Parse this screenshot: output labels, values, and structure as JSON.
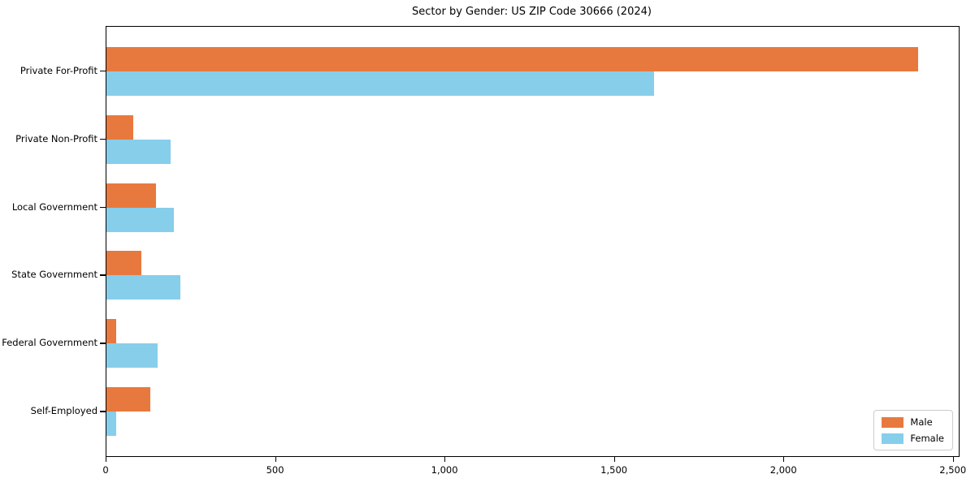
{
  "title": "Sector by Gender: US ZIP Code 30666 (2024)",
  "chart_data": {
    "type": "bar",
    "orientation": "horizontal",
    "title": "Sector by Gender: US ZIP Code 30666 (2024)",
    "categories": [
      "Private For-Profit",
      "Private Non-Profit",
      "Local Government",
      "State Government",
      "Federal Government",
      "Self-Employed"
    ],
    "series": [
      {
        "name": "Male",
        "color": "#e8793e",
        "values": [
          2396,
          78,
          145,
          104,
          28,
          130
        ]
      },
      {
        "name": "Female",
        "color": "#87ceeb",
        "values": [
          1616,
          190,
          198,
          218,
          152,
          28
        ]
      }
    ],
    "xlabel": "",
    "ylabel": "",
    "xlim": [
      0,
      2515
    ],
    "xticks": [
      0,
      500,
      1000,
      1500,
      2000,
      2500
    ],
    "xtick_labels": [
      "0",
      "500",
      "1,000",
      "1,500",
      "2,000",
      "2,500"
    ],
    "grid": false,
    "legend_position": "lower right"
  },
  "legend": {
    "items": [
      {
        "label": "Male",
        "color": "#e8793e"
      },
      {
        "label": "Female",
        "color": "#87ceeb"
      }
    ]
  },
  "colors": {
    "male": "#e8793e",
    "female": "#87ceeb",
    "spine": "#000000",
    "background": "#ffffff",
    "legend_border": "#cccccc"
  }
}
